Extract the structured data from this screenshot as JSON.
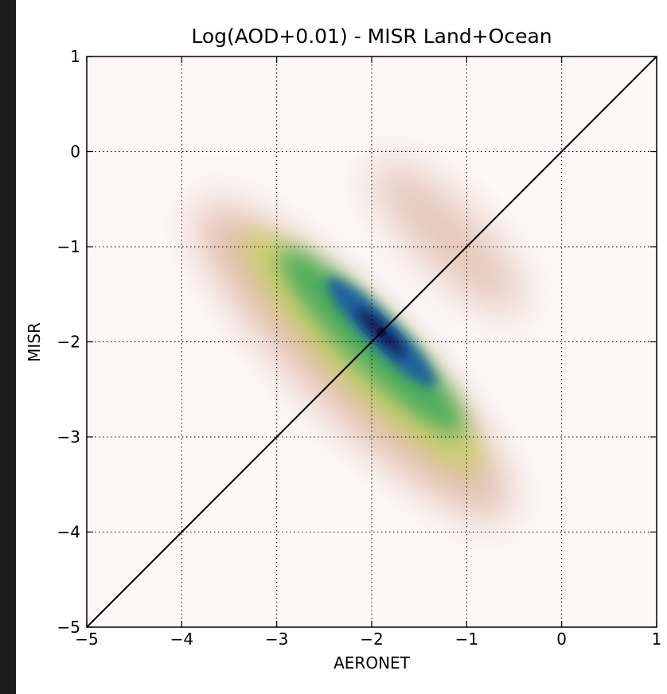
{
  "chart_data": {
    "type": "heatmap",
    "title": "Log(AOD+0.01) - MISR Land+Ocean",
    "xlabel": "AERONET",
    "ylabel": "MISR",
    "xlim": [
      -5,
      1
    ],
    "ylim": [
      -5,
      1
    ],
    "xticks": [
      -5,
      -4,
      -3,
      -2,
      -1,
      0,
      1
    ],
    "yticks": [
      -5,
      -4,
      -3,
      -2,
      -1,
      0,
      1
    ],
    "xtick_labels": [
      "−5",
      "−4",
      "−3",
      "−2",
      "−1",
      "0",
      "1"
    ],
    "ytick_labels": [
      "−5",
      "−4",
      "−3",
      "−2",
      "−1",
      "0",
      "1"
    ],
    "grid": true,
    "grid_style": "dotted",
    "colormap": [
      "#fdf7f7",
      "#c88a6a",
      "#c9d266",
      "#3aa85c",
      "#1f5fa2",
      "#07124f"
    ],
    "density_peak": {
      "x": -1.9,
      "y": -1.9
    },
    "reference_line": {
      "x": [
        -5,
        1
      ],
      "y": [
        -5,
        1
      ],
      "color": "#000000"
    }
  }
}
